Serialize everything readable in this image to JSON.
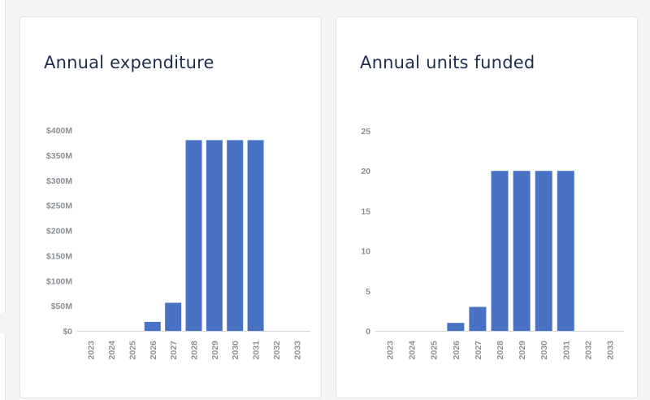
{
  "chart_data": [
    {
      "type": "bar",
      "title": "Annual expenditure",
      "categories": [
        "2023",
        "2024",
        "2025",
        "2026",
        "2027",
        "2028",
        "2029",
        "2030",
        "2031",
        "2032",
        "2033"
      ],
      "values": [
        0,
        0,
        0,
        18,
        56,
        380,
        380,
        380,
        380,
        0,
        0
      ],
      "ylim": [
        0,
        400
      ],
      "yticks": [
        0,
        50,
        100,
        150,
        200,
        250,
        300,
        350,
        400
      ],
      "ytick_labels": [
        "$0",
        "$50M",
        "$100M",
        "$150M",
        "$200M",
        "$250M",
        "$300M",
        "$350M",
        "$400M"
      ],
      "bar_color": "#4a72c4",
      "grid": false
    },
    {
      "type": "bar",
      "title": "Annual units funded",
      "categories": [
        "2023",
        "2024",
        "2025",
        "2026",
        "2027",
        "2028",
        "2029",
        "2030",
        "2031",
        "2032",
        "2033"
      ],
      "values": [
        0,
        0,
        0,
        1,
        3,
        20,
        20,
        20,
        20,
        0,
        0
      ],
      "ylim": [
        0,
        25
      ],
      "yticks": [
        0,
        5,
        10,
        15,
        20,
        25
      ],
      "ytick_labels": [
        "0",
        "5",
        "10",
        "15",
        "20",
        "25"
      ],
      "bar_color": "#4a72c4",
      "grid": false
    }
  ]
}
